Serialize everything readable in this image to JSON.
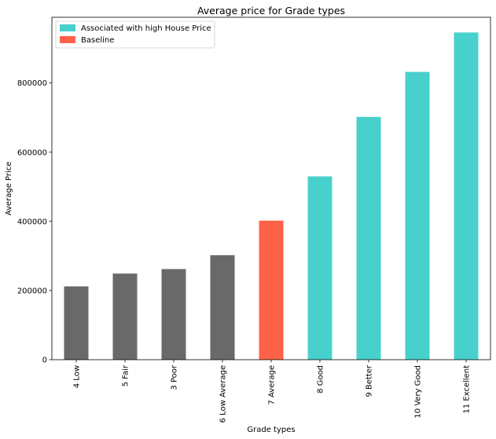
{
  "chart_data": {
    "type": "bar",
    "title": "Average price for Grade types",
    "xlabel": "Grade types",
    "ylabel": "Average Price",
    "categories": [
      "4 Low",
      "5 Fair",
      "3 Poor",
      "6 Low Average",
      "7 Average",
      "8 Good",
      "9 Better",
      "10 Very Good",
      "11 Excellent"
    ],
    "values": [
      212000,
      249000,
      262000,
      302000,
      402000,
      530000,
      702000,
      832000,
      946000
    ],
    "bar_colors": [
      "#696969",
      "#696969",
      "#696969",
      "#696969",
      "#ff6347",
      "#48d1cc",
      "#48d1cc",
      "#48d1cc",
      "#48d1cc"
    ],
    "ylim": [
      0,
      990000
    ],
    "yticks": [
      0,
      200000,
      400000,
      600000,
      800000
    ],
    "ytick_labels": [
      "0",
      "200000",
      "400000",
      "600000",
      "800000"
    ],
    "grid": false,
    "legend": {
      "placement": "top-left",
      "entries": [
        {
          "label": "Associated with high House Price",
          "color": "#48d1cc"
        },
        {
          "label": "Baseline",
          "color": "#ff6347"
        }
      ]
    }
  }
}
